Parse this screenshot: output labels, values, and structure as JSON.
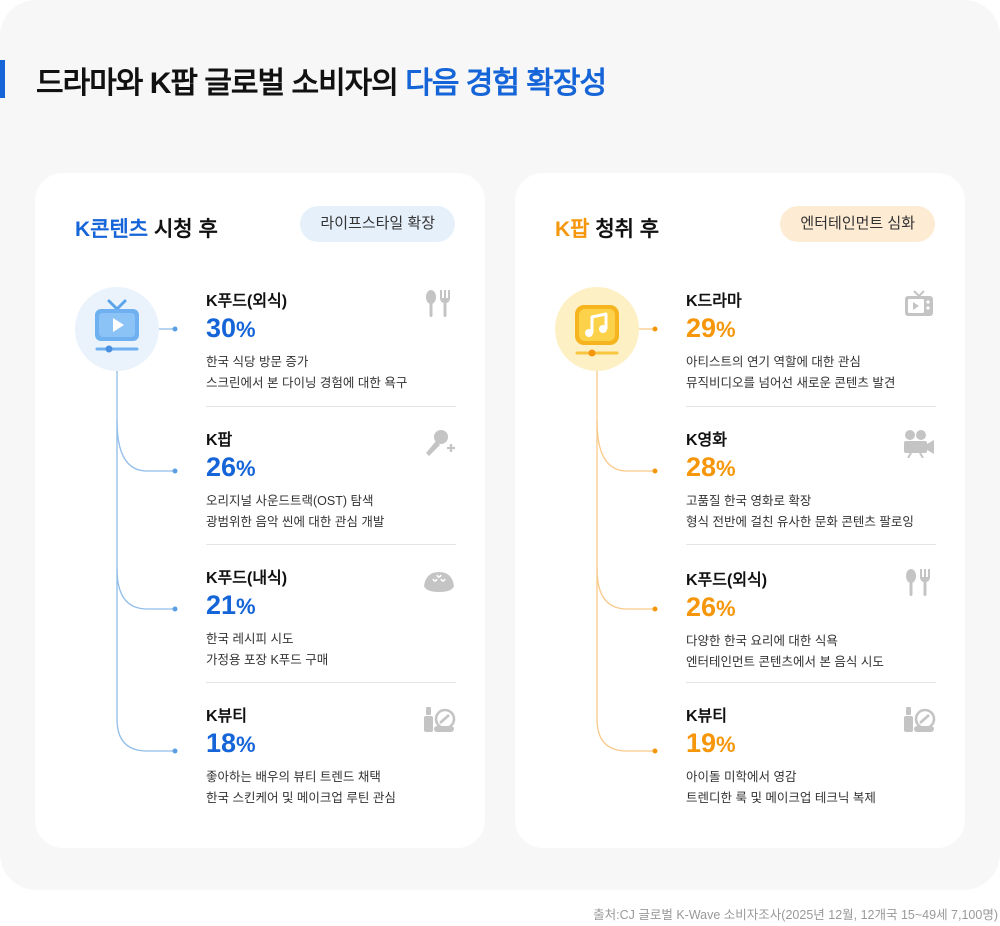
{
  "title": {
    "prefix": "드라마와 K팝 글로벌 소비자의 ",
    "highlight": "다음 경험 확장성"
  },
  "colors": {
    "blue": "#1565d8",
    "orange": "#f5960b"
  },
  "left_card": {
    "head_kw": "K콘텐츠",
    "head_rest": " 시청 후",
    "pill": "라이프스타일 확장",
    "hero_icon": "tv-play-icon",
    "items": [
      {
        "name": "K푸드(외식)",
        "value": "30",
        "unit": "%",
        "desc1": "한국 식당 방문 증가",
        "desc2": "스크린에서 본 다이닝 경험에 대한 욕구",
        "icon": "utensils-icon"
      },
      {
        "name": "K팝",
        "value": "26",
        "unit": "%",
        "desc1": "오리지널 사운드트랙(OST) 탐색",
        "desc2": "광범위한 음악 씬에 대한 관심 개발",
        "icon": "microphone-icon"
      },
      {
        "name": "K푸드(내식)",
        "value": "21",
        "unit": "%",
        "desc1": "한국 레시피 시도",
        "desc2": "가정용 포장 K푸드 구매",
        "icon": "dumpling-icon"
      },
      {
        "name": "K뷰티",
        "value": "18",
        "unit": "%",
        "desc1": "좋아하는 배우의 뷰티 트렌드 채택",
        "desc2": "한국 스킨케어 및 메이크업 루틴 관심",
        "icon": "cosmetics-icon"
      }
    ]
  },
  "right_card": {
    "head_kw": "K팝",
    "head_rest": " 청취 후",
    "pill": "엔터테인먼트 심화",
    "hero_icon": "music-note-icon",
    "items": [
      {
        "name": "K드라마",
        "value": "29",
        "unit": "%",
        "desc1": "아티스트의 연기 역할에 대한 관심",
        "desc2": "뮤직비디오를 넘어선 새로운 콘텐츠 발견",
        "icon": "tv-icon"
      },
      {
        "name": "K영화",
        "value": "28",
        "unit": "%",
        "desc1": "고품질 한국 영화로 확장",
        "desc2": "형식 전반에 걸친 유사한 문화 콘텐츠 팔로잉",
        "icon": "movie-camera-icon"
      },
      {
        "name": "K푸드(외식)",
        "value": "26",
        "unit": "%",
        "desc1": "다양한 한국 요리에 대한 식욕",
        "desc2": "엔터테인먼트 콘텐츠에서 본 음식 시도",
        "icon": "utensils-icon"
      },
      {
        "name": "K뷰티",
        "value": "19",
        "unit": "%",
        "desc1": "아이돌 미학에서 영감",
        "desc2": "트렌디한 룩 및 메이크업 테크닉 복제",
        "icon": "cosmetics-icon"
      }
    ]
  },
  "source": "출처:CJ 글로벌 K-Wave 소비자조사(2025년 12월, 12개국 15~49세 7,100명)"
}
